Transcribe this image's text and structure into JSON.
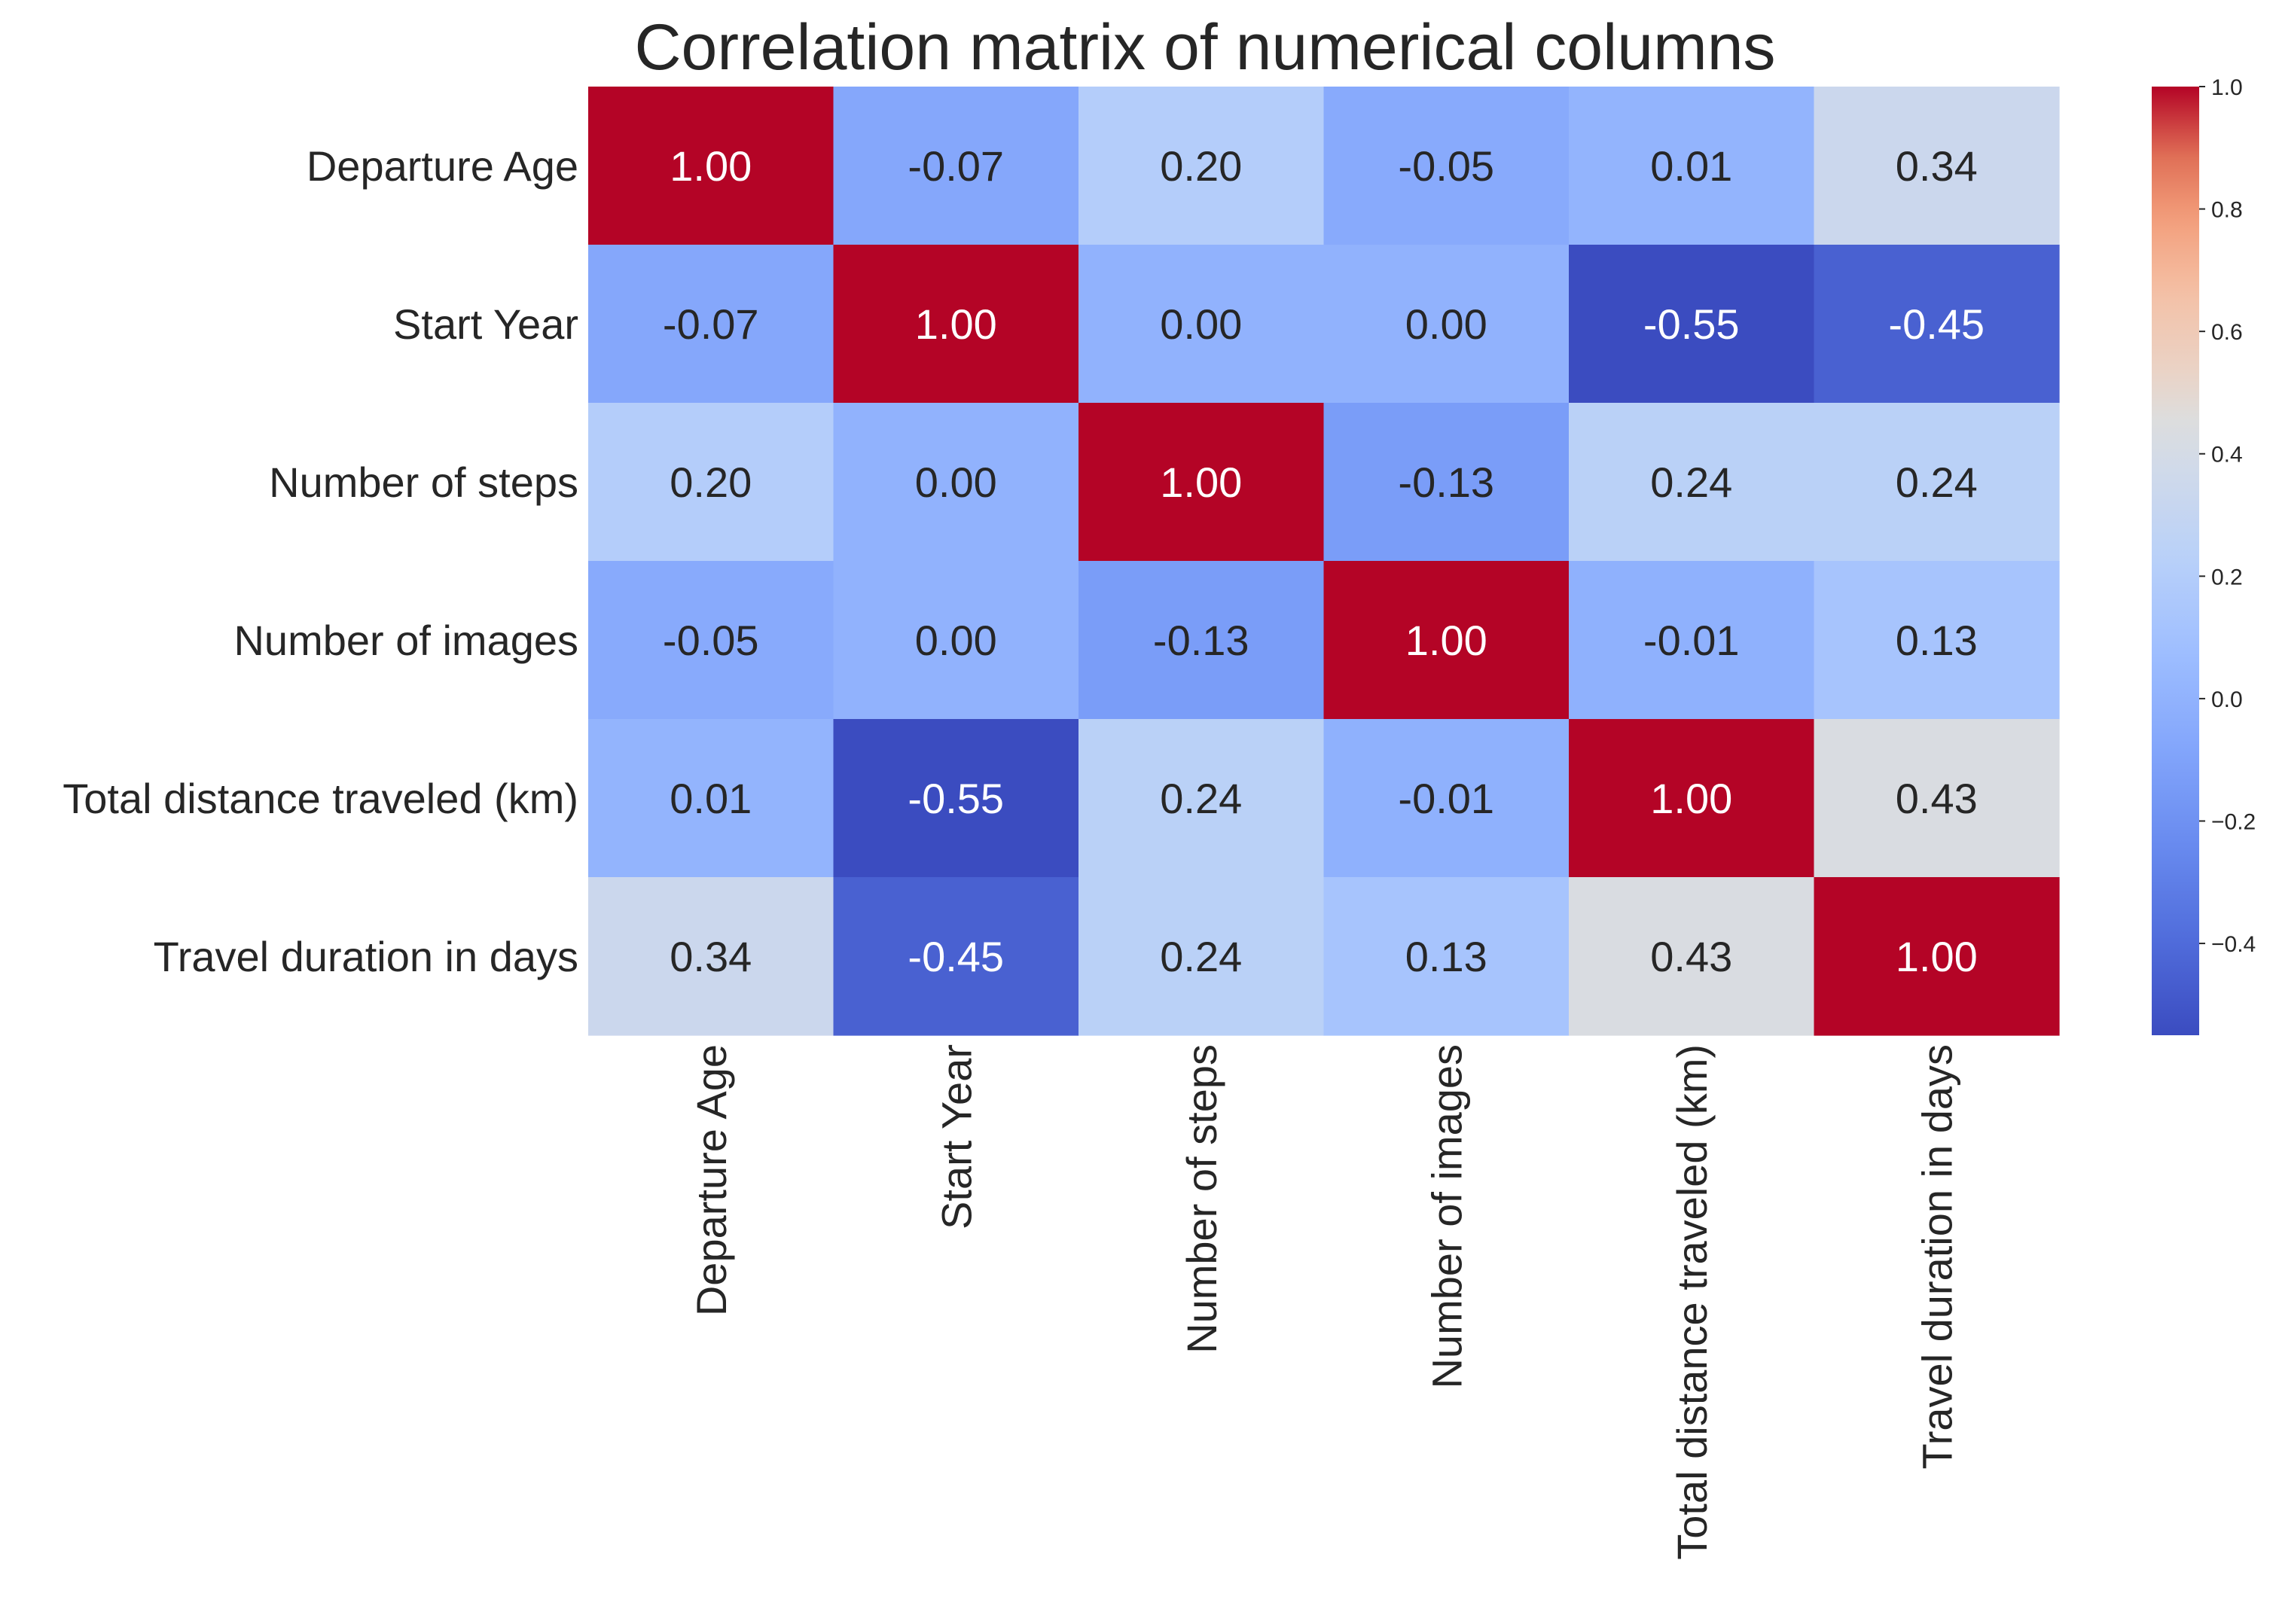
{
  "chart_data": {
    "type": "heatmap",
    "title": "Correlation matrix of numerical columns",
    "rows": [
      "Departure Age",
      "Start Year",
      "Number of steps",
      "Number of images",
      "Total distance traveled (km)",
      "Travel duration in days"
    ],
    "columns": [
      "Departure Age",
      "Start Year",
      "Number of steps",
      "Number of images",
      "Total distance traveled (km)",
      "Travel duration in days"
    ],
    "values": [
      [
        1.0,
        -0.07,
        0.2,
        -0.05,
        0.01,
        0.34
      ],
      [
        -0.07,
        1.0,
        0.0,
        0.0,
        -0.55,
        -0.45
      ],
      [
        0.2,
        0.0,
        1.0,
        -0.13,
        0.24,
        0.24
      ],
      [
        -0.05,
        0.0,
        -0.13,
        1.0,
        -0.01,
        0.13
      ],
      [
        0.01,
        -0.55,
        0.24,
        -0.01,
        1.0,
        0.43
      ],
      [
        0.34,
        -0.45,
        0.24,
        0.13,
        0.43,
        1.0
      ]
    ],
    "cell_labels": [
      [
        "1.00",
        "-0.07",
        "0.20",
        "-0.05",
        "0.01",
        "0.34"
      ],
      [
        "-0.07",
        "1.00",
        "0.00",
        "0.00",
        "-0.55",
        "-0.45"
      ],
      [
        "0.20",
        "0.00",
        "1.00",
        "-0.13",
        "0.24",
        "0.24"
      ],
      [
        "-0.05",
        "0.00",
        "-0.13",
        "1.00",
        "-0.01",
        "0.13"
      ],
      [
        "0.01",
        "-0.55",
        "0.24",
        "-0.01",
        "1.00",
        "0.43"
      ],
      [
        "0.34",
        "-0.45",
        "0.24",
        "0.13",
        "0.43",
        "1.00"
      ]
    ],
    "colormap": "coolwarm",
    "vmin": -0.55,
    "vmax": 1.0,
    "colorbar_ticks": [
      1.0,
      0.8,
      0.6,
      0.4,
      0.2,
      0.0,
      -0.2,
      -0.4
    ],
    "colorbar_tick_labels": [
      "1.0",
      "0.8",
      "0.6",
      "0.4",
      "0.2",
      "0.0",
      "−0.2",
      "−0.4"
    ],
    "colorbar_placement": "right",
    "colors": {
      "cold": "#3b4cc0",
      "neutral": "#dddddd",
      "hot": "#b40426",
      "text_dark": "#262626",
      "text_light": "#ffffff"
    }
  }
}
